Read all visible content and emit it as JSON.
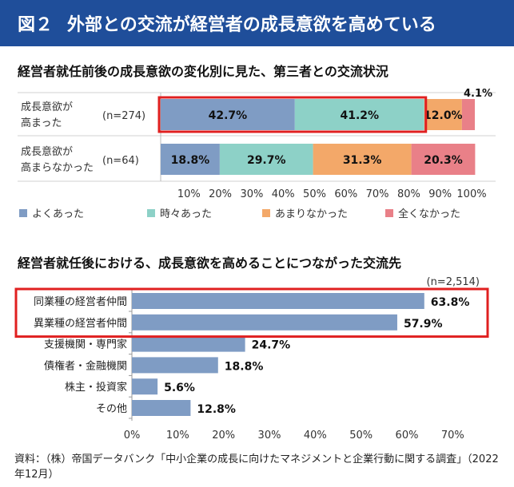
{
  "banner": {
    "figure_no": "図２",
    "title": "外部との交流が経営者の成長意欲を高めている"
  },
  "chart_data": [
    {
      "type": "bar",
      "stacked": true,
      "orientation": "horizontal",
      "title": "経営者就任前後の成長意欲の変化別に見た、第三者との交流状況",
      "categories": [
        "成長意欲が高まった",
        "成長意欲が高まらなかった"
      ],
      "category_lines": [
        [
          "成長意欲が",
          "高まった"
        ],
        [
          "成長意欲が",
          "高まらなかった"
        ]
      ],
      "sample_sizes": [
        "(n=274)",
        "(n=64)"
      ],
      "series": [
        {
          "name": "よくあった",
          "values": [
            42.7,
            18.8
          ],
          "labels": [
            "42.7%",
            "18.8%"
          ],
          "color": "#7f9cc4"
        },
        {
          "name": "時々あった",
          "values": [
            41.2,
            29.7
          ],
          "labels": [
            "41.2%",
            "29.7%"
          ],
          "color": "#8dd1c7"
        },
        {
          "name": "あまりなかった",
          "values": [
            12.0,
            31.3
          ],
          "labels": [
            "12.0%",
            "31.3%"
          ],
          "color": "#f3a869"
        },
        {
          "name": "全くなかった",
          "values": [
            4.1,
            20.3
          ],
          "labels": [
            "4.1%",
            "20.3%"
          ],
          "color": "#e98088"
        }
      ],
      "x_ticks": [
        "10%",
        "20%",
        "30%",
        "40%",
        "50%",
        "60%",
        "70%",
        "80%",
        "90%",
        "100%"
      ],
      "xlim": [
        0,
        100
      ],
      "legend_position": "bottom",
      "highlight": "成長意欲が高まった: よくあった + 時々あった",
      "highlight_color": "#e02020"
    },
    {
      "type": "bar",
      "orientation": "horizontal",
      "title": "経営者就任後における、成長意欲を高めることにつながった交流先",
      "sample_size": "(n=2,514)",
      "categories": [
        "同業種の経営者仲間",
        "異業種の経営者仲間",
        "支援機関・専門家",
        "債権者・金融機関",
        "株主・投資家",
        "その他"
      ],
      "values": [
        63.8,
        57.9,
        24.7,
        18.8,
        5.6,
        12.8
      ],
      "labels": [
        "63.8%",
        "57.9%",
        "24.7%",
        "18.8%",
        "5.6%",
        "12.8%"
      ],
      "bar_color": "#7f9cc4",
      "x_ticks": [
        "0%",
        "10%",
        "20%",
        "30%",
        "40%",
        "50%",
        "60%",
        "70%"
      ],
      "xlim": [
        0,
        75
      ],
      "highlight": "同業種の経営者仲間, 異業種の経営者仲間",
      "highlight_color": "#e02020"
    }
  ],
  "source": "資料：（株）帝国データバンク「中小企業の成長に向けたマネジメントと企業行動に関する調査」（2022年12月）"
}
